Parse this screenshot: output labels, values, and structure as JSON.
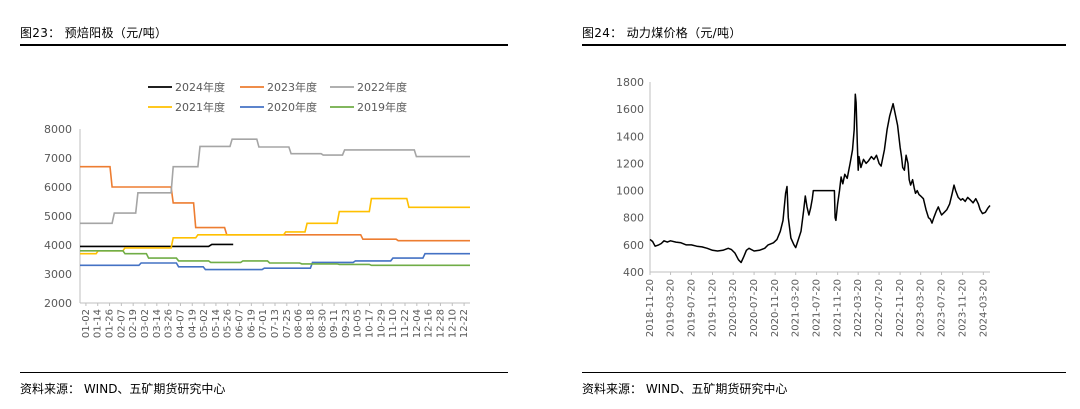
{
  "left": {
    "title": "图23：  预焙阳极（元/吨）",
    "source": "资料来源：  WIND、五矿期货研究中心",
    "chart_data": {
      "type": "line",
      "title": "",
      "xlabel": "",
      "ylabel": "",
      "ylim": [
        2000,
        8000
      ],
      "yticks": [
        2000,
        3000,
        4000,
        5000,
        6000,
        7000,
        8000
      ],
      "categories": [
        "01-02",
        "01-14",
        "01-26",
        "02-07",
        "02-19",
        "03-02",
        "03-14",
        "03-26",
        "04-07",
        "04-19",
        "05-02",
        "05-14",
        "05-26",
        "06-07",
        "06-19",
        "07-01",
        "07-13",
        "07-25",
        "08-06",
        "08-18",
        "08-30",
        "09-11",
        "09-23",
        "10-05",
        "10-17",
        "10-29",
        "11-10",
        "11-22",
        "12-04",
        "12-16",
        "12-28",
        "12-10",
        "12-22"
      ],
      "x_range": [
        0,
        364
      ],
      "grid": false,
      "legend": "top",
      "series": [
        {
          "name": "2024年度",
          "color": "#000000",
          "points": [
            [
              0,
              3950
            ],
            [
              120,
              3950
            ],
            [
              123,
              4020
            ],
            [
              143,
              4020
            ]
          ]
        },
        {
          "name": "2023年度",
          "color": "#ED7D31",
          "points": [
            [
              0,
              6700
            ],
            [
              28,
              6700
            ],
            [
              30,
              6000
            ],
            [
              85,
              6000
            ],
            [
              87,
              5450
            ],
            [
              106,
              5450
            ],
            [
              108,
              4600
            ],
            [
              135,
              4600
            ],
            [
              137,
              4350
            ],
            [
              262,
              4350
            ],
            [
              264,
              4200
            ],
            [
              295,
              4200
            ],
            [
              297,
              4150
            ],
            [
              364,
              4150
            ]
          ]
        },
        {
          "name": "2022年度",
          "color": "#A5A5A5",
          "points": [
            [
              0,
              4750
            ],
            [
              30,
              4750
            ],
            [
              32,
              5100
            ],
            [
              52,
              5100
            ],
            [
              54,
              5800
            ],
            [
              85,
              5800
            ],
            [
              87,
              6700
            ],
            [
              110,
              6700
            ],
            [
              112,
              7400
            ],
            [
              140,
              7400
            ],
            [
              142,
              7650
            ],
            [
              165,
              7650
            ],
            [
              167,
              7380
            ],
            [
              195,
              7380
            ],
            [
              197,
              7150
            ],
            [
              225,
              7150
            ],
            [
              227,
              7100
            ],
            [
              245,
              7100
            ],
            [
              247,
              7280
            ],
            [
              312,
              7280
            ],
            [
              314,
              7050
            ],
            [
              364,
              7050
            ]
          ]
        },
        {
          "name": "2021年度",
          "color": "#FFC000",
          "points": [
            [
              0,
              3700
            ],
            [
              15,
              3700
            ],
            [
              17,
              3800
            ],
            [
              40,
              3800
            ],
            [
              42,
              3900
            ],
            [
              85,
              3900
            ],
            [
              87,
              4250
            ],
            [
              108,
              4250
            ],
            [
              110,
              4350
            ],
            [
              190,
              4350
            ],
            [
              192,
              4450
            ],
            [
              210,
              4450
            ],
            [
              212,
              4750
            ],
            [
              240,
              4750
            ],
            [
              242,
              5150
            ],
            [
              270,
              5150
            ],
            [
              272,
              5600
            ],
            [
              305,
              5600
            ],
            [
              307,
              5300
            ],
            [
              364,
              5300
            ]
          ]
        },
        {
          "name": "2020年度",
          "color": "#4472C4",
          "points": [
            [
              0,
              3300
            ],
            [
              55,
              3300
            ],
            [
              57,
              3380
            ],
            [
              90,
              3380
            ],
            [
              92,
              3250
            ],
            [
              115,
              3250
            ],
            [
              117,
              3150
            ],
            [
              170,
              3150
            ],
            [
              172,
              3200
            ],
            [
              215,
              3200
            ],
            [
              217,
              3400
            ],
            [
              255,
              3400
            ],
            [
              257,
              3450
            ],
            [
              290,
              3450
            ],
            [
              292,
              3550
            ],
            [
              320,
              3550
            ],
            [
              322,
              3700
            ],
            [
              364,
              3700
            ]
          ]
        },
        {
          "name": "2019年度",
          "color": "#70AD47",
          "points": [
            [
              0,
              3800
            ],
            [
              40,
              3800
            ],
            [
              42,
              3700
            ],
            [
              62,
              3700
            ],
            [
              64,
              3550
            ],
            [
              90,
              3550
            ],
            [
              92,
              3450
            ],
            [
              120,
              3450
            ],
            [
              122,
              3400
            ],
            [
              150,
              3400
            ],
            [
              152,
              3450
            ],
            [
              175,
              3450
            ],
            [
              177,
              3380
            ],
            [
              205,
              3380
            ],
            [
              207,
              3350
            ],
            [
              240,
              3350
            ],
            [
              242,
              3330
            ],
            [
              270,
              3330
            ],
            [
              272,
              3300
            ],
            [
              364,
              3300
            ]
          ]
        }
      ]
    }
  },
  "right": {
    "title": "图24：  动力煤价格（元/吨）",
    "source": "资料来源：  WIND、五矿期货研究中心",
    "chart_data": {
      "type": "line",
      "title": "",
      "xlabel": "",
      "ylabel": "",
      "ylim": [
        400,
        1800
      ],
      "yticks": [
        400,
        600,
        800,
        1000,
        1200,
        1400,
        1600,
        1800
      ],
      "x_start": "2018-11-20",
      "categories": [
        "2018-11-20",
        "2019-03-20",
        "2019-07-20",
        "2019-11-20",
        "2020-03-20",
        "2020-07-20",
        "2020-11-20",
        "2021-03-20",
        "2021-07-20",
        "2021-11-20",
        "2022-03-20",
        "2022-07-20",
        "2022-11-20",
        "2023-03-20",
        "2023-07-20",
        "2023-11-20",
        "2024-03-20"
      ],
      "grid": false,
      "legend": "none",
      "series": [
        {
          "name": "",
          "color": "#000000",
          "points": [
            [
              "2018-11-20",
              640
            ],
            [
              "2018-12-05",
              625
            ],
            [
              "2018-12-20",
              590
            ],
            [
              "2019-01-10",
              600
            ],
            [
              "2019-01-25",
              610
            ],
            [
              "2019-02-10",
              630
            ],
            [
              "2019-03-01",
              620
            ],
            [
              "2019-03-20",
              630
            ],
            [
              "2019-04-20",
              620
            ],
            [
              "2019-05-20",
              615
            ],
            [
              "2019-06-20",
              600
            ],
            [
              "2019-07-20",
              600
            ],
            [
              "2019-08-20",
              590
            ],
            [
              "2019-09-20",
              585
            ],
            [
              "2019-10-20",
              575
            ],
            [
              "2019-11-20",
              560
            ],
            [
              "2019-12-20",
              555
            ],
            [
              "2020-01-20",
              560
            ],
            [
              "2020-02-20",
              575
            ],
            [
              "2020-03-10",
              565
            ],
            [
              "2020-03-30",
              540
            ],
            [
              "2020-04-20",
              490
            ],
            [
              "2020-05-05",
              470
            ],
            [
              "2020-05-20",
              510
            ],
            [
              "2020-06-05",
              560
            ],
            [
              "2020-06-20",
              575
            ],
            [
              "2020-07-20",
              555
            ],
            [
              "2020-08-20",
              560
            ],
            [
              "2020-09-20",
              575
            ],
            [
              "2020-10-10",
              600
            ],
            [
              "2020-11-10",
              615
            ],
            [
              "2020-12-01",
              640
            ],
            [
              "2020-12-20",
              700
            ],
            [
              "2021-01-05",
              780
            ],
            [
              "2021-01-20",
              980
            ],
            [
              "2021-01-28",
              1030
            ],
            [
              "2021-02-05",
              800
            ],
            [
              "2021-02-20",
              650
            ],
            [
              "2021-03-10",
              600
            ],
            [
              "2021-03-20",
              580
            ],
            [
              "2021-04-05",
              640
            ],
            [
              "2021-04-20",
              700
            ],
            [
              "2021-05-05",
              850
            ],
            [
              "2021-05-15",
              960
            ],
            [
              "2021-05-25",
              880
            ],
            [
              "2021-06-05",
              820
            ],
            [
              "2021-06-15",
              870
            ],
            [
              "2021-06-25",
              940
            ],
            [
              "2021-07-01",
              1000
            ],
            [
              "2021-07-20",
              1000
            ],
            [
              "2021-08-20",
              1000
            ],
            [
              "2021-09-20",
              1000
            ],
            [
              "2021-10-20",
              1000
            ],
            [
              "2021-11-01",
              1000
            ],
            [
              "2021-11-05",
              800
            ],
            [
              "2021-11-10",
              780
            ],
            [
              "2021-11-20",
              900
            ],
            [
              "2021-12-01",
              1000
            ],
            [
              "2021-12-10",
              1100
            ],
            [
              "2021-12-20",
              1050
            ],
            [
              "2022-01-01",
              1120
            ],
            [
              "2022-01-15",
              1090
            ],
            [
              "2022-02-01",
              1200
            ],
            [
              "2022-02-15",
              1300
            ],
            [
              "2022-02-25",
              1450
            ],
            [
              "2022-03-03",
              1710
            ],
            [
              "2022-03-08",
              1650
            ],
            [
              "2022-03-15",
              1350
            ],
            [
              "2022-03-20",
              1150
            ],
            [
              "2022-03-25",
              1250
            ],
            [
              "2022-04-05",
              1170
            ],
            [
              "2022-04-20",
              1230
            ],
            [
              "2022-05-05",
              1200
            ],
            [
              "2022-05-20",
              1220
            ],
            [
              "2022-06-05",
              1250
            ],
            [
              "2022-06-20",
              1230
            ],
            [
              "2022-07-05",
              1260
            ],
            [
              "2022-07-20",
              1200
            ],
            [
              "2022-08-01",
              1180
            ],
            [
              "2022-08-20",
              1300
            ],
            [
              "2022-09-05",
              1450
            ],
            [
              "2022-09-20",
              1550
            ],
            [
              "2022-10-01",
              1600
            ],
            [
              "2022-10-10",
              1640
            ],
            [
              "2022-10-20",
              1580
            ],
            [
              "2022-11-05",
              1480
            ],
            [
              "2022-11-20",
              1320
            ],
            [
              "2022-11-28",
              1250
            ],
            [
              "2022-12-05",
              1170
            ],
            [
              "2022-12-15",
              1150
            ],
            [
              "2022-12-25",
              1260
            ],
            [
              "2023-01-05",
              1200
            ],
            [
              "2023-01-12",
              1080
            ],
            [
              "2023-01-20",
              1040
            ],
            [
              "2023-02-01",
              1080
            ],
            [
              "2023-02-10",
              1020
            ],
            [
              "2023-02-18",
              980
            ],
            [
              "2023-02-28",
              1000
            ],
            [
              "2023-03-10",
              970
            ],
            [
              "2023-03-20",
              960
            ],
            [
              "2023-04-05",
              940
            ],
            [
              "2023-04-20",
              860
            ],
            [
              "2023-05-05",
              800
            ],
            [
              "2023-05-15",
              790
            ],
            [
              "2023-05-25",
              760
            ],
            [
              "2023-06-05",
              800
            ],
            [
              "2023-06-20",
              850
            ],
            [
              "2023-07-01",
              880
            ],
            [
              "2023-07-10",
              850
            ],
            [
              "2023-07-20",
              820
            ],
            [
              "2023-08-05",
              840
            ],
            [
              "2023-08-20",
              860
            ],
            [
              "2023-09-05",
              900
            ],
            [
              "2023-09-20",
              980
            ],
            [
              "2023-10-01",
              1040
            ],
            [
              "2023-10-10",
              1000
            ],
            [
              "2023-10-25",
              950
            ],
            [
              "2023-11-10",
              930
            ],
            [
              "2023-11-20",
              940
            ],
            [
              "2023-12-05",
              920
            ],
            [
              "2023-12-20",
              950
            ],
            [
              "2024-01-05",
              930
            ],
            [
              "2024-01-20",
              910
            ],
            [
              "2024-02-05",
              940
            ],
            [
              "2024-02-20",
              900
            ],
            [
              "2024-03-01",
              860
            ],
            [
              "2024-03-15",
              830
            ],
            [
              "2024-04-01",
              840
            ],
            [
              "2024-04-15",
              870
            ],
            [
              "2024-04-28",
              890
            ]
          ]
        }
      ]
    }
  }
}
